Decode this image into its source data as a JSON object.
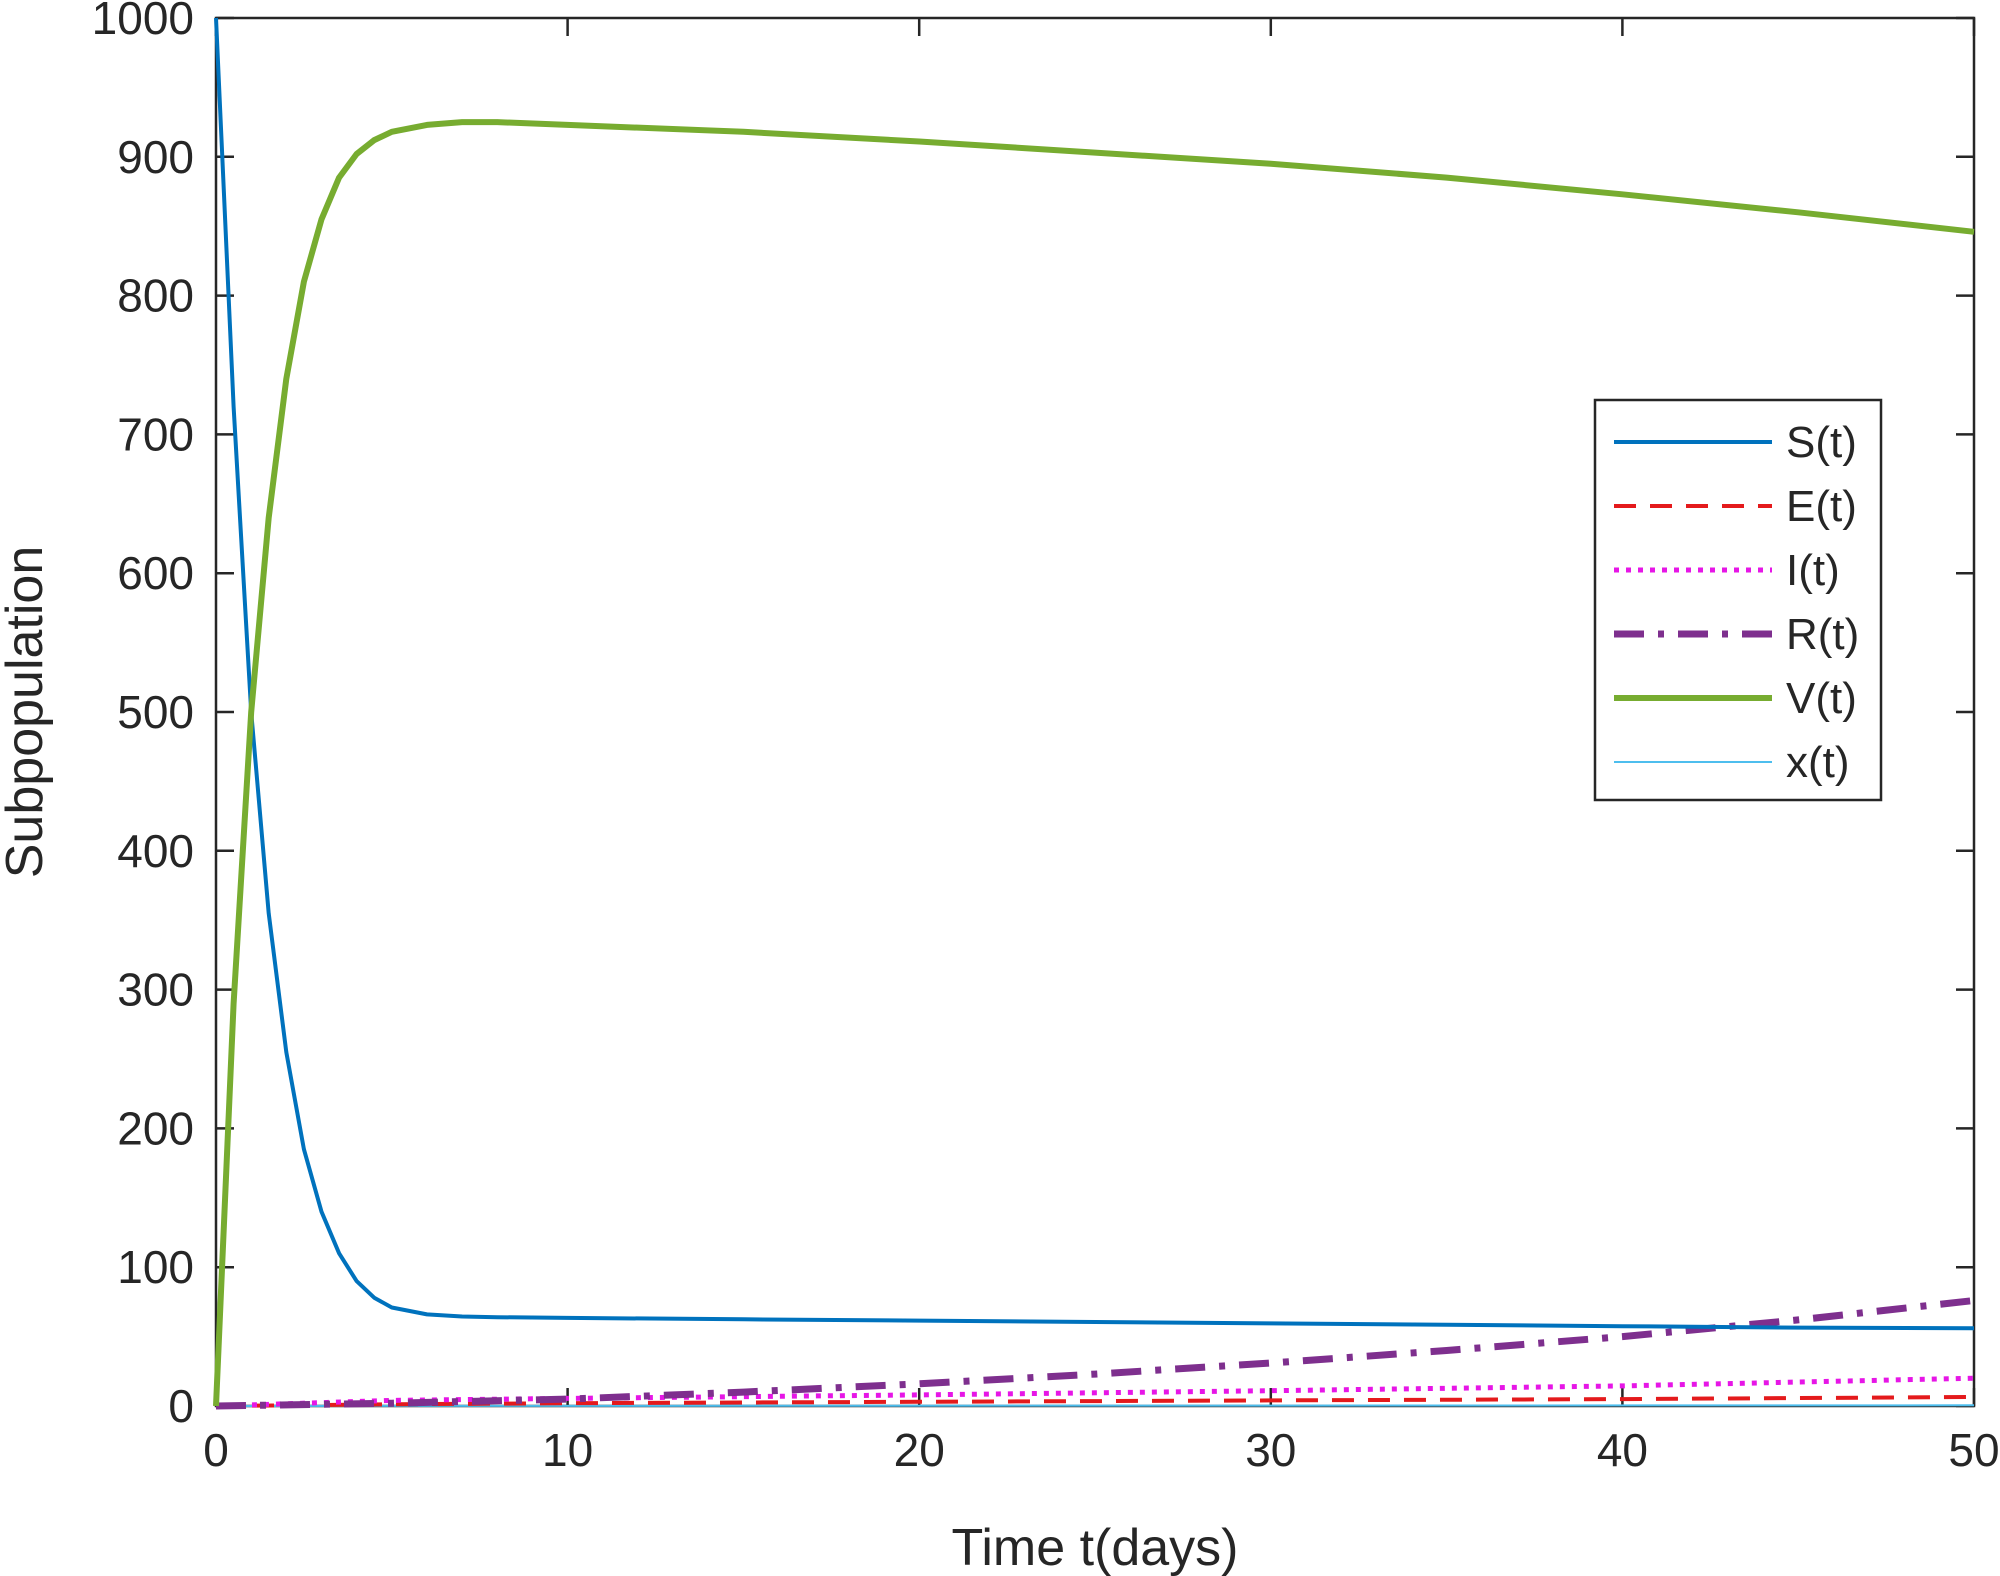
{
  "chart_data": {
    "type": "line",
    "title": "",
    "xlabel": "Time t(days)",
    "ylabel": "Subpopulation",
    "xlim": [
      0,
      50
    ],
    "ylim": [
      0,
      1000
    ],
    "xticks": [
      0,
      10,
      20,
      30,
      40,
      50
    ],
    "yticks": [
      0,
      100,
      200,
      300,
      400,
      500,
      600,
      700,
      800,
      900,
      1000
    ],
    "grid": false,
    "legend_position": "right",
    "series": [
      {
        "name": "S(t)",
        "color": "#0072BD",
        "dash": "solid",
        "x": [
          0,
          0.5,
          1,
          1.5,
          2,
          2.5,
          3,
          3.5,
          4,
          4.5,
          5,
          6,
          7,
          8,
          10,
          15,
          20,
          25,
          30,
          35,
          40,
          45,
          50
        ],
        "y": [
          1000,
          720,
          500,
          355,
          255,
          185,
          140,
          110,
          90,
          78,
          71,
          66,
          64.5,
          64,
          63.5,
          62.5,
          61.5,
          60.5,
          59.5,
          58.5,
          57.5,
          56.5,
          56
        ]
      },
      {
        "name": "E(t)",
        "color": "#E41A1C",
        "dash": "dashed",
        "x": [
          0,
          5,
          10,
          20,
          30,
          40,
          50
        ],
        "y": [
          0,
          1.2,
          2,
          3,
          4,
          5,
          6.5
        ]
      },
      {
        "name": "I(t)",
        "color": "#E616E6",
        "dash": "dotted",
        "x": [
          0,
          5,
          10,
          20,
          30,
          40,
          50
        ],
        "y": [
          0,
          4,
          5.5,
          8,
          11,
          14.5,
          20
        ]
      },
      {
        "name": "R(t)",
        "color": "#7E2F8E",
        "dash": "dashdot",
        "x": [
          0,
          5,
          10,
          15,
          20,
          25,
          30,
          35,
          40,
          45,
          50
        ],
        "y": [
          0,
          2,
          5,
          10,
          16,
          23,
          31,
          40,
          50,
          62,
          76
        ]
      },
      {
        "name": "V(t)",
        "color": "#77AC30",
        "dash": "solid",
        "x": [
          0,
          0.5,
          1,
          1.5,
          2,
          2.5,
          3,
          3.5,
          4,
          4.5,
          5,
          6,
          7,
          8,
          10,
          15,
          20,
          25,
          30,
          35,
          40,
          45,
          50
        ],
        "y": [
          0,
          290,
          500,
          640,
          740,
          810,
          855,
          885,
          902,
          912,
          918,
          923,
          925,
          925,
          923,
          918,
          911,
          903,
          895,
          885,
          873,
          860,
          846
        ]
      },
      {
        "name": "x(t)",
        "color": "#4DBEEE",
        "dash": "thin",
        "x": [
          0,
          50
        ],
        "y": [
          0,
          0.5
        ]
      }
    ]
  }
}
